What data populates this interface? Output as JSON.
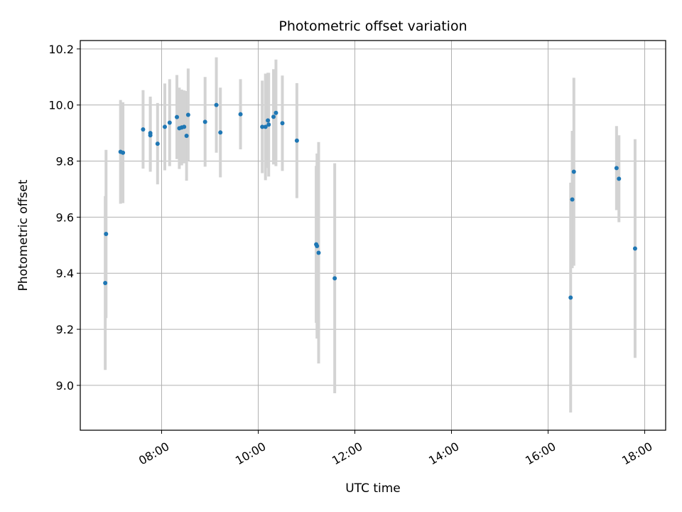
{
  "chart_data": {
    "type": "scatter",
    "title": "Photometric offset variation",
    "xlabel": "UTC time",
    "ylabel": "Photometric offset",
    "x_tick_labels": [
      "08:00",
      "10:00",
      "12:00",
      "14:00",
      "16:00",
      "18:00"
    ],
    "y_tick_labels": [
      "9.0",
      "9.2",
      "9.4",
      "9.6",
      "9.8",
      "10.0",
      "10.2"
    ],
    "xlim": [
      "06:19",
      "18:26"
    ],
    "ylim": [
      8.84,
      10.23
    ],
    "grid": true,
    "marker_color": "#1f77b4",
    "errorbar_color": "#d3d3d3",
    "series": [
      {
        "points": [
          {
            "x": "06:50",
            "y": 9.365,
            "err": 0.31
          },
          {
            "x": "06:51",
            "y": 9.54,
            "err": 0.3
          },
          {
            "x": "07:09",
            "y": 9.833,
            "err": 0.185
          },
          {
            "x": "07:12",
            "y": 9.83,
            "err": 0.18
          },
          {
            "x": "07:37",
            "y": 9.913,
            "err": 0.14
          },
          {
            "x": "07:46",
            "y": 9.9,
            "err": 0.13
          },
          {
            "x": "07:46",
            "y": 9.892,
            "err": 0.13
          },
          {
            "x": "07:55",
            "y": 9.862,
            "err": 0.145
          },
          {
            "x": "08:04",
            "y": 9.922,
            "err": 0.155
          },
          {
            "x": "08:10",
            "y": 9.937,
            "err": 0.155
          },
          {
            "x": "08:19",
            "y": 9.957,
            "err": 0.15
          },
          {
            "x": "08:22",
            "y": 9.917,
            "err": 0.145
          },
          {
            "x": "08:25",
            "y": 9.92,
            "err": 0.135
          },
          {
            "x": "08:28",
            "y": 9.922,
            "err": 0.13
          },
          {
            "x": "08:31",
            "y": 9.89,
            "err": 0.16
          },
          {
            "x": "08:33",
            "y": 9.965,
            "err": 0.165
          },
          {
            "x": "08:54",
            "y": 9.94,
            "err": 0.16
          },
          {
            "x": "09:08",
            "y": 10.0,
            "err": 0.17
          },
          {
            "x": "09:13",
            "y": 9.902,
            "err": 0.16
          },
          {
            "x": "09:38",
            "y": 9.967,
            "err": 0.125
          },
          {
            "x": "10:05",
            "y": 9.922,
            "err": 0.165
          },
          {
            "x": "10:09",
            "y": 9.922,
            "err": 0.19
          },
          {
            "x": "10:12",
            "y": 9.945,
            "err": 0.17
          },
          {
            "x": "10:13",
            "y": 9.93,
            "err": 0.185
          },
          {
            "x": "10:19",
            "y": 9.958,
            "err": 0.17
          },
          {
            "x": "10:22",
            "y": 9.972,
            "err": 0.19
          },
          {
            "x": "10:30",
            "y": 9.935,
            "err": 0.17
          },
          {
            "x": "10:48",
            "y": 9.873,
            "err": 0.205
          },
          {
            "x": "11:12",
            "y": 9.503,
            "err": 0.28
          },
          {
            "x": "11:13",
            "y": 9.497,
            "err": 0.33
          },
          {
            "x": "11:15",
            "y": 9.473,
            "err": 0.395
          },
          {
            "x": "11:35",
            "y": 9.382,
            "err": 0.41
          },
          {
            "x": "16:28",
            "y": 9.313,
            "err": 0.41
          },
          {
            "x": "16:30",
            "y": 9.663,
            "err": 0.245
          },
          {
            "x": "16:32",
            "y": 9.762,
            "err": 0.335
          },
          {
            "x": "17:25",
            "y": 9.775,
            "err": 0.15
          },
          {
            "x": "17:28",
            "y": 9.737,
            "err": 0.155
          },
          {
            "x": "17:48",
            "y": 9.488,
            "err": 0.39
          }
        ]
      }
    ]
  }
}
